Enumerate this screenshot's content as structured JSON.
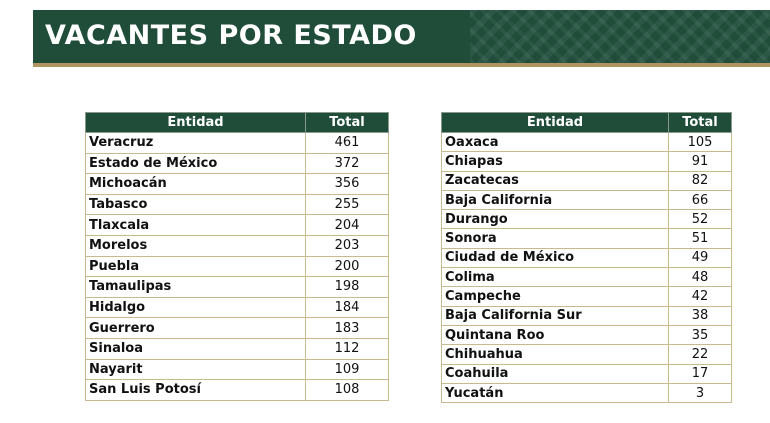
{
  "title": "VACANTES POR ESTADO",
  "table_left": {
    "headers": [
      "Entidad",
      "Total"
    ],
    "rows": [
      {
        "entidad": "Veracruz",
        "total": "461"
      },
      {
        "entidad": "Estado de México",
        "total": "372"
      },
      {
        "entidad": "Michoacán",
        "total": "356"
      },
      {
        "entidad": "Tabasco",
        "total": "255"
      },
      {
        "entidad": "Tlaxcala",
        "total": "204"
      },
      {
        "entidad": "Morelos",
        "total": "203"
      },
      {
        "entidad": "Puebla",
        "total": "200"
      },
      {
        "entidad": "Tamaulipas",
        "total": "198"
      },
      {
        "entidad": "Hidalgo",
        "total": "184"
      },
      {
        "entidad": "Guerrero",
        "total": "183"
      },
      {
        "entidad": "Sinaloa",
        "total": "112"
      },
      {
        "entidad": "Nayarit",
        "total": "109"
      },
      {
        "entidad": "San Luis Potosí",
        "total": "108"
      }
    ]
  },
  "table_right": {
    "headers": [
      "Entidad",
      "Total"
    ],
    "rows": [
      {
        "entidad": "Oaxaca",
        "total": "105"
      },
      {
        "entidad": "Chiapas",
        "total": "91"
      },
      {
        "entidad": "Zacatecas",
        "total": "82"
      },
      {
        "entidad": "Baja California",
        "total": "66"
      },
      {
        "entidad": "Durango",
        "total": "52"
      },
      {
        "entidad": "Sonora",
        "total": "51"
      },
      {
        "entidad": "Ciudad de México",
        "total": "49"
      },
      {
        "entidad": "Colima",
        "total": "48"
      },
      {
        "entidad": "Campeche",
        "total": "42"
      },
      {
        "entidad": "Baja California Sur",
        "total": "38"
      },
      {
        "entidad": "Quintana Roo",
        "total": "35"
      },
      {
        "entidad": "Chihuahua",
        "total": "22"
      },
      {
        "entidad": "Coahuila",
        "total": "17"
      },
      {
        "entidad": "Yucatán",
        "total": "3"
      }
    ]
  },
  "colors": {
    "banner_green": "#1f4d3a",
    "gold_accent": "#b0935f",
    "cell_border": "#c9b98f"
  }
}
